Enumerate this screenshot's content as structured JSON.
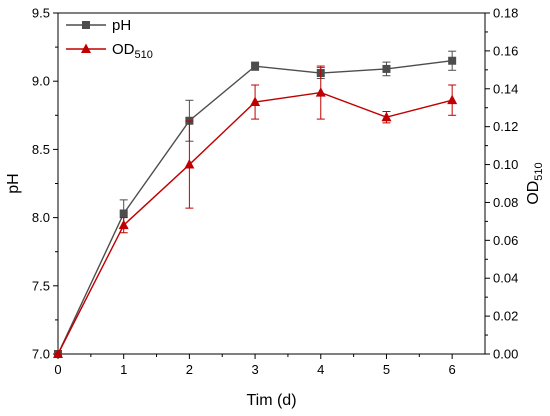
{
  "chart_data": {
    "type": "line",
    "xlabel": "Tim (d)",
    "ylabel_left": "pH",
    "ylabel_right": {
      "base": "OD",
      "sub": "510"
    },
    "x": [
      0,
      1,
      2,
      3,
      4,
      5,
      6
    ],
    "x_ticks": [
      "0",
      "1",
      "2",
      "3",
      "4",
      "5",
      "6"
    ],
    "xlim": [
      0,
      6.5
    ],
    "ylim_left": [
      7.0,
      9.5
    ],
    "ylim_right": [
      0.0,
      0.18
    ],
    "y_ticks_left": [
      "7.0",
      "7.5",
      "8.0",
      "8.5",
      "9.0",
      "9.5"
    ],
    "y_ticks_right": [
      "0.00",
      "0.02",
      "0.04",
      "0.06",
      "0.08",
      "0.10",
      "0.12",
      "0.14",
      "0.16",
      "0.18"
    ],
    "grid": false,
    "legend_position": "top-left",
    "series": [
      {
        "name": "pH",
        "legend": {
          "base": "pH",
          "sub": ""
        },
        "axis": "left",
        "color": "#4d4d4d",
        "marker": "square",
        "values": [
          7.0,
          8.03,
          8.71,
          9.11,
          9.06,
          9.09,
          9.15
        ],
        "errors": [
          0,
          0.1,
          0.15,
          0.03,
          0.04,
          0.05,
          0.07
        ]
      },
      {
        "name": "OD510",
        "legend": {
          "base": "OD",
          "sub": "510"
        },
        "axis": "right",
        "color": "#c00000",
        "marker": "triangle",
        "values": [
          0.0,
          0.068,
          0.1,
          0.133,
          0.138,
          0.125,
          0.134
        ],
        "errors": [
          0,
          0.004,
          0.023,
          0.009,
          0.014,
          0.003,
          0.008
        ]
      }
    ]
  }
}
